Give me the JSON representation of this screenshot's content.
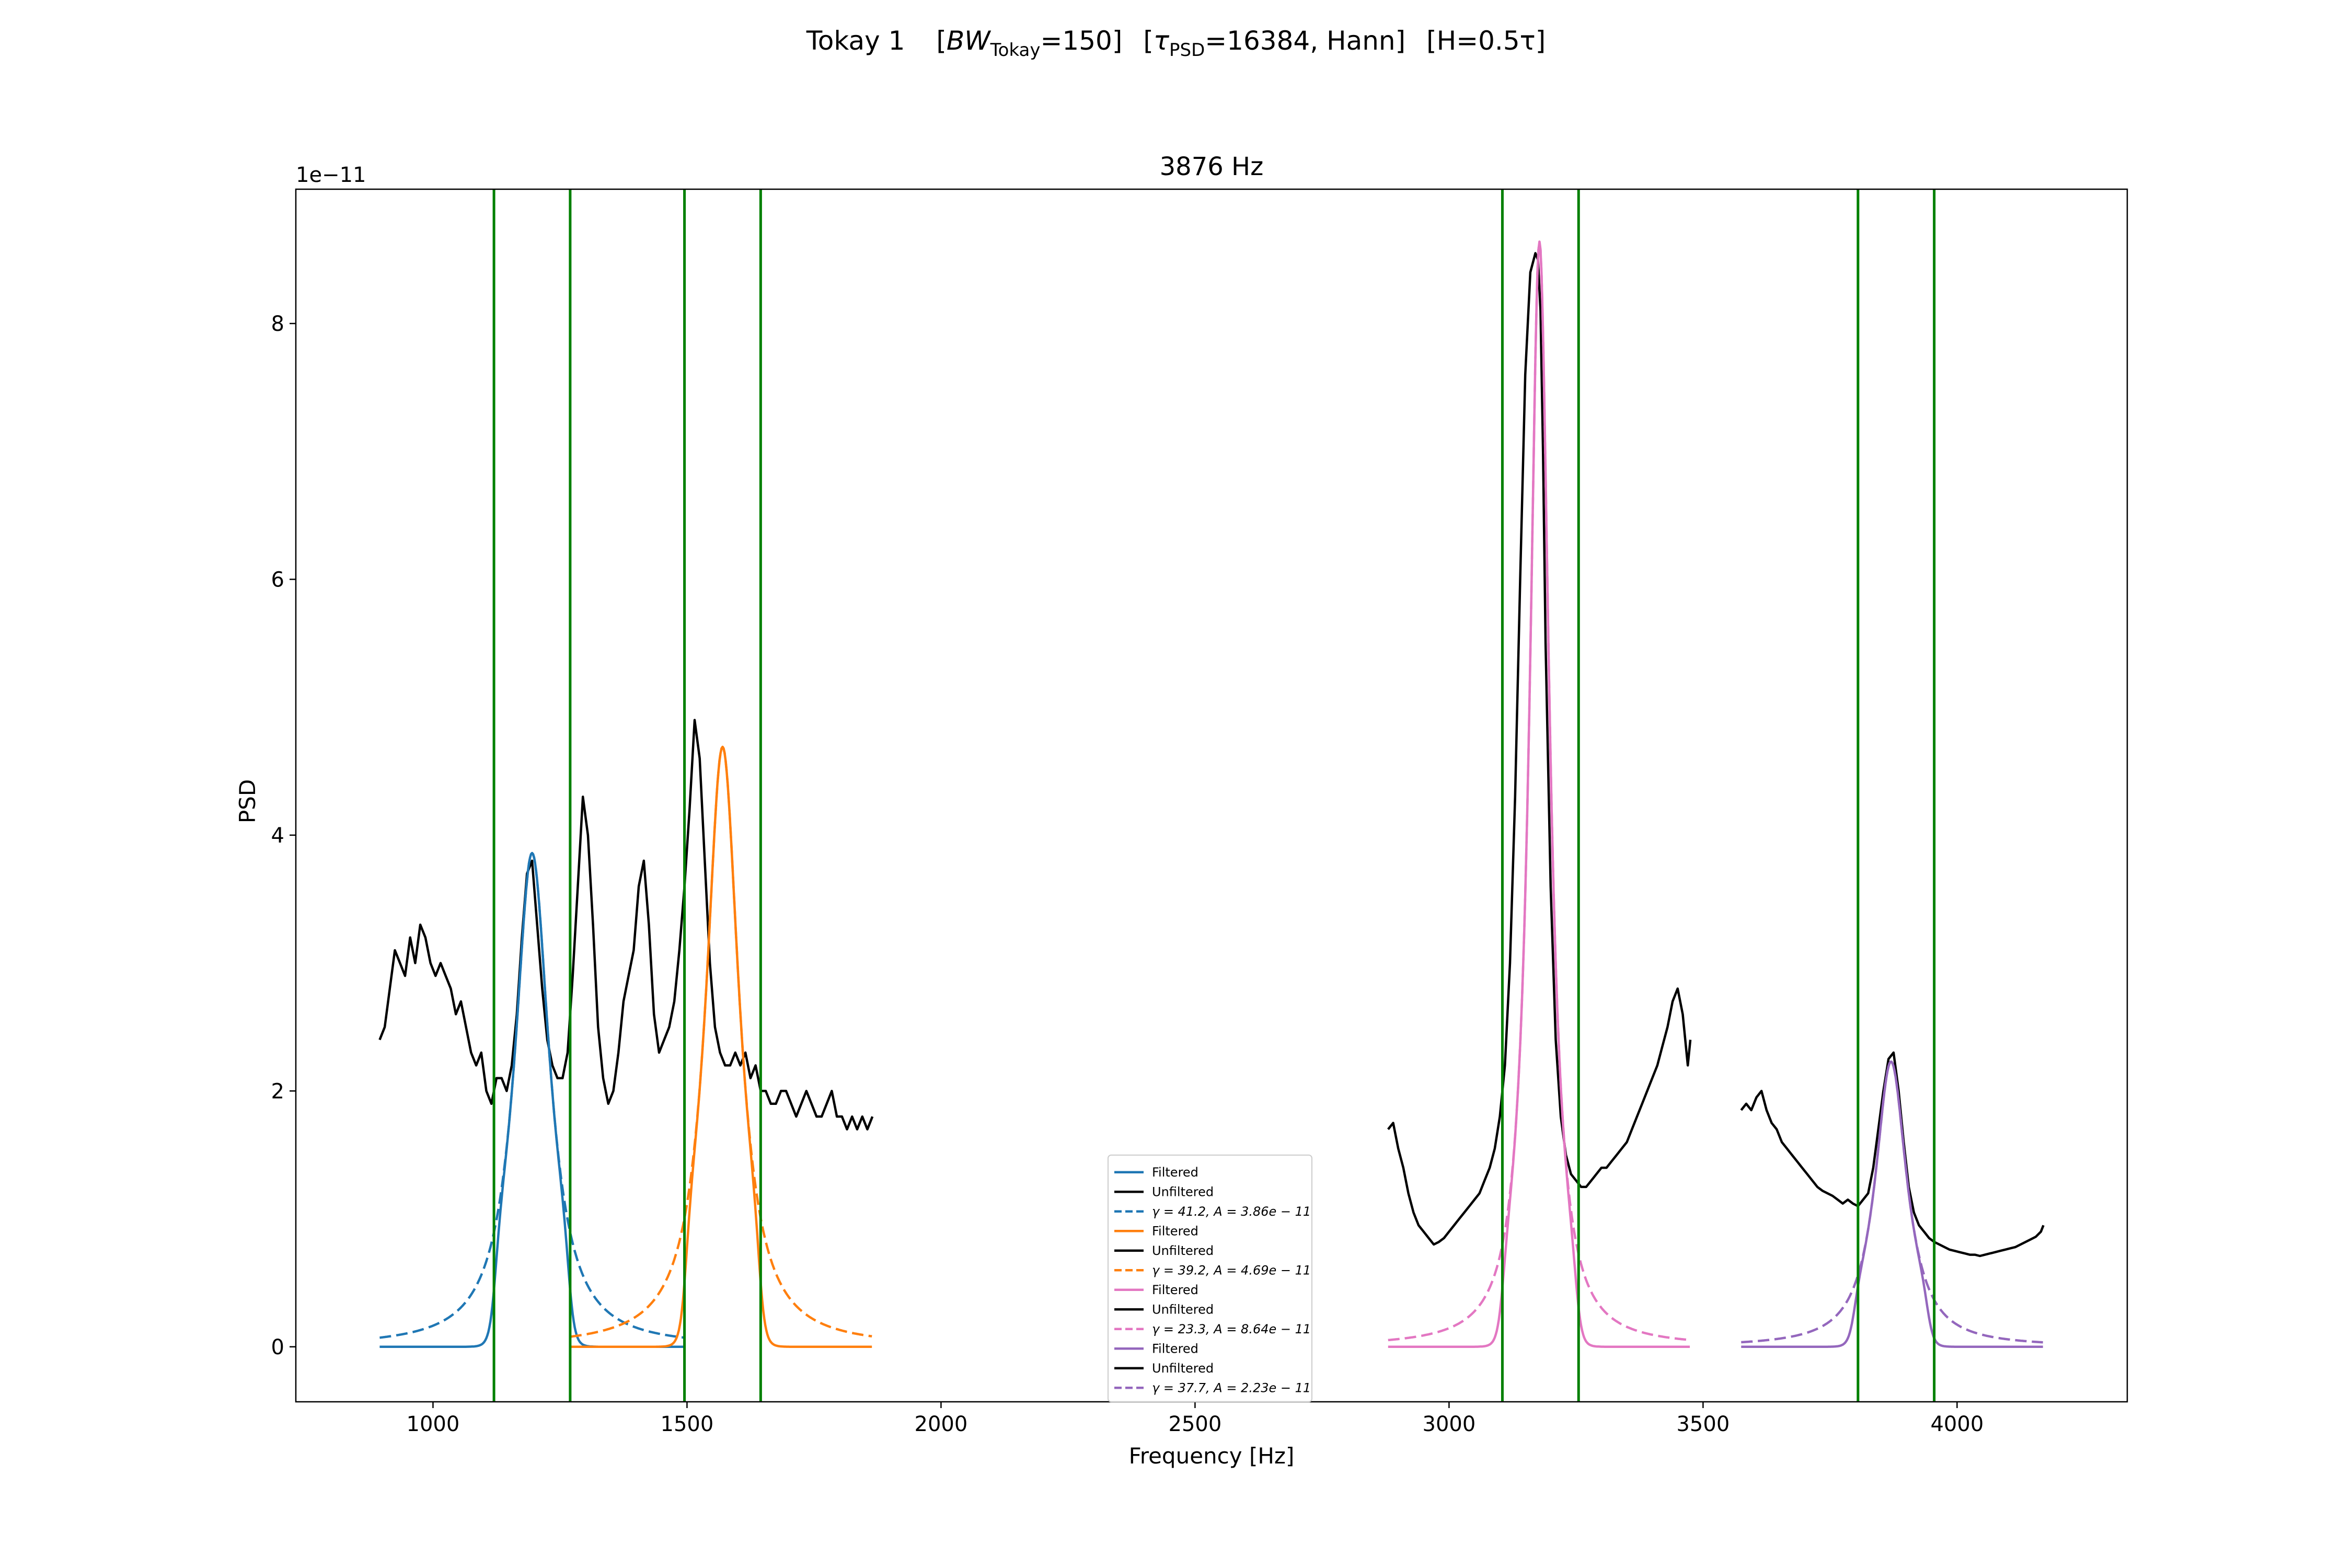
{
  "chart_data": {
    "type": "line",
    "suptitle_parts": {
      "lead": "Tokay 1",
      "bw_sym": "BW",
      "bw_sub": "Tokay",
      "bw_val": "=150]",
      "tau_sym": "τ",
      "tau_sub": "PSD",
      "tau_val": "=16384, Hann]",
      "h": "[H=0.5τ]"
    },
    "title": "3876 Hz",
    "xlabel": "Frequency [Hz]",
    "ylabel": "PSD",
    "y_offset_label": "1e−11",
    "xlim": [
      730,
      4335
    ],
    "ylim": [
      -0.43,
      9.05
    ],
    "y_scale": 1e-11,
    "xticks": [
      1000,
      1500,
      2000,
      2500,
      3000,
      3500,
      4000
    ],
    "xtick_labels": [
      "1000",
      "1500",
      "2000",
      "2500",
      "3000",
      "3500",
      "4000"
    ],
    "yticks": [
      0,
      2,
      4,
      6,
      8
    ],
    "ytick_labels": [
      "0",
      "2",
      "4",
      "6",
      "8"
    ],
    "grid": false,
    "legend_position": "lower center",
    "band_edges": [
      1120,
      1270,
      1495,
      1645,
      3105,
      3255,
      3805,
      3955
    ],
    "colors": {
      "blue": "#1f77b4",
      "orange": "#ff7f0e",
      "pink": "#e377c2",
      "purple": "#9467bd",
      "green": "#008000",
      "black": "#000000"
    },
    "peaks": [
      {
        "center": 1195,
        "gamma": 41.2,
        "amp": 3.86,
        "color": "#1f77b4",
        "range": [
          895,
          1495
        ],
        "filtered_half_width": 75
      },
      {
        "center": 1570,
        "gamma": 39.2,
        "amp": 4.69,
        "color": "#ff7f0e",
        "range": [
          1270,
          1865
        ],
        "filtered_half_width": 75
      },
      {
        "center": 3178,
        "gamma": 23.3,
        "amp": 8.64,
        "color": "#e377c2",
        "range": [
          2880,
          3475
        ],
        "filtered_half_width": 75
      },
      {
        "center": 3870,
        "gamma": 37.7,
        "amp": 2.23,
        "color": "#9467bd",
        "range": [
          3575,
          4170
        ],
        "filtered_half_width": 75
      }
    ],
    "unfiltered_segments": [
      {
        "x": [
          895,
          905,
          915,
          925,
          935,
          945,
          955,
          965,
          975,
          985,
          995,
          1005,
          1015,
          1025,
          1035,
          1045,
          1055,
          1065,
          1075,
          1085,
          1095,
          1105,
          1115,
          1125,
          1135,
          1145,
          1155,
          1165,
          1175,
          1185,
          1195,
          1205,
          1215,
          1225,
          1235,
          1245,
          1255,
          1265,
          1275,
          1285,
          1295,
          1305,
          1315,
          1325,
          1335,
          1345,
          1355,
          1365,
          1375,
          1385,
          1395,
          1405,
          1415,
          1425,
          1435,
          1445,
          1455,
          1465,
          1475,
          1485,
          1495,
          1505,
          1515,
          1525,
          1535,
          1545,
          1555,
          1565,
          1575,
          1585,
          1595,
          1605,
          1615,
          1625,
          1635,
          1645,
          1655,
          1665,
          1675,
          1685,
          1695,
          1705,
          1715,
          1725,
          1735,
          1745,
          1755,
          1765,
          1775,
          1785,
          1795,
          1805,
          1815,
          1825,
          1835,
          1845,
          1855,
          1865
        ],
        "y": [
          2.4,
          2.5,
          2.8,
          3.1,
          3.0,
          2.9,
          3.2,
          3.0,
          3.3,
          3.2,
          3.0,
          2.9,
          3.0,
          2.9,
          2.8,
          2.6,
          2.7,
          2.5,
          2.3,
          2.2,
          2.3,
          2.0,
          1.9,
          2.1,
          2.1,
          2.0,
          2.2,
          2.6,
          3.2,
          3.7,
          3.8,
          3.3,
          2.8,
          2.4,
          2.2,
          2.1,
          2.1,
          2.3,
          2.9,
          3.6,
          4.3,
          4.0,
          3.3,
          2.5,
          2.1,
          1.9,
          2.0,
          2.3,
          2.7,
          2.9,
          3.1,
          3.6,
          3.8,
          3.3,
          2.6,
          2.3,
          2.4,
          2.5,
          2.7,
          3.1,
          3.6,
          4.2,
          4.9,
          4.6,
          3.8,
          3.0,
          2.5,
          2.3,
          2.2,
          2.2,
          2.3,
          2.2,
          2.3,
          2.1,
          2.2,
          2.0,
          2.0,
          1.9,
          1.9,
          2.0,
          2.0,
          1.9,
          1.8,
          1.9,
          2.0,
          1.9,
          1.8,
          1.8,
          1.9,
          2.0,
          1.8,
          1.8,
          1.7,
          1.8,
          1.7,
          1.8,
          1.7,
          1.8
        ]
      },
      {
        "x": [
          2880,
          2890,
          2900,
          2910,
          2920,
          2930,
          2940,
          2950,
          2960,
          2970,
          2980,
          2990,
          3000,
          3010,
          3020,
          3030,
          3040,
          3050,
          3060,
          3070,
          3080,
          3090,
          3100,
          3110,
          3120,
          3130,
          3140,
          3150,
          3160,
          3170,
          3175,
          3180,
          3185,
          3190,
          3200,
          3210,
          3220,
          3230,
          3240,
          3250,
          3260,
          3270,
          3280,
          3290,
          3300,
          3310,
          3320,
          3330,
          3340,
          3350,
          3360,
          3370,
          3380,
          3390,
          3400,
          3410,
          3420,
          3430,
          3440,
          3450,
          3460,
          3470,
          3475
        ],
        "y": [
          1.7,
          1.75,
          1.55,
          1.4,
          1.2,
          1.05,
          0.95,
          0.9,
          0.85,
          0.8,
          0.82,
          0.85,
          0.9,
          0.95,
          1.0,
          1.05,
          1.1,
          1.15,
          1.2,
          1.3,
          1.4,
          1.55,
          1.8,
          2.2,
          3.0,
          4.3,
          6.0,
          7.6,
          8.4,
          8.55,
          8.5,
          8.1,
          7.0,
          5.5,
          3.6,
          2.4,
          1.8,
          1.5,
          1.35,
          1.3,
          1.25,
          1.25,
          1.3,
          1.35,
          1.4,
          1.4,
          1.45,
          1.5,
          1.55,
          1.6,
          1.7,
          1.8,
          1.9,
          2.0,
          2.1,
          2.2,
          2.35,
          2.5,
          2.7,
          2.8,
          2.6,
          2.2,
          2.4
        ]
      },
      {
        "x": [
          3575,
          3585,
          3595,
          3605,
          3615,
          3625,
          3635,
          3645,
          3655,
          3665,
          3675,
          3685,
          3695,
          3705,
          3715,
          3725,
          3735,
          3745,
          3755,
          3765,
          3775,
          3785,
          3795,
          3805,
          3815,
          3825,
          3835,
          3845,
          3855,
          3865,
          3875,
          3885,
          3895,
          3905,
          3915,
          3925,
          3935,
          3945,
          3955,
          3965,
          3975,
          3985,
          3995,
          4005,
          4015,
          4025,
          4035,
          4045,
          4055,
          4065,
          4075,
          4085,
          4095,
          4105,
          4115,
          4125,
          4135,
          4145,
          4155,
          4165,
          4170
        ],
        "y": [
          1.85,
          1.9,
          1.85,
          1.95,
          2.0,
          1.85,
          1.75,
          1.7,
          1.6,
          1.55,
          1.5,
          1.45,
          1.4,
          1.35,
          1.3,
          1.25,
          1.22,
          1.2,
          1.18,
          1.15,
          1.12,
          1.15,
          1.12,
          1.1,
          1.15,
          1.2,
          1.4,
          1.7,
          2.0,
          2.25,
          2.3,
          2.0,
          1.6,
          1.25,
          1.05,
          0.95,
          0.9,
          0.85,
          0.82,
          0.8,
          0.78,
          0.76,
          0.75,
          0.74,
          0.73,
          0.72,
          0.72,
          0.71,
          0.72,
          0.73,
          0.74,
          0.75,
          0.76,
          0.77,
          0.78,
          0.8,
          0.82,
          0.84,
          0.86,
          0.9,
          0.95
        ]
      }
    ],
    "legend": [
      {
        "label": "Filtered",
        "color": "#1f77b4",
        "dash": false
      },
      {
        "label": "Unfiltered",
        "color": "#000000",
        "dash": false
      },
      {
        "label": "γ = 41.2, A = 3.86e − 11",
        "color": "#1f77b4",
        "dash": true
      },
      {
        "label": "Filtered",
        "color": "#ff7f0e",
        "dash": false
      },
      {
        "label": "Unfiltered",
        "color": "#000000",
        "dash": false
      },
      {
        "label": "γ = 39.2, A = 4.69e − 11",
        "color": "#ff7f0e",
        "dash": true
      },
      {
        "label": "Filtered",
        "color": "#e377c2",
        "dash": false
      },
      {
        "label": "Unfiltered",
        "color": "#000000",
        "dash": false
      },
      {
        "label": "γ = 23.3, A = 8.64e − 11",
        "color": "#e377c2",
        "dash": true
      },
      {
        "label": "Filtered",
        "color": "#9467bd",
        "dash": false
      },
      {
        "label": "Unfiltered",
        "color": "#000000",
        "dash": false
      },
      {
        "label": "γ = 37.7, A = 2.23e − 11",
        "color": "#9467bd",
        "dash": true
      }
    ]
  }
}
